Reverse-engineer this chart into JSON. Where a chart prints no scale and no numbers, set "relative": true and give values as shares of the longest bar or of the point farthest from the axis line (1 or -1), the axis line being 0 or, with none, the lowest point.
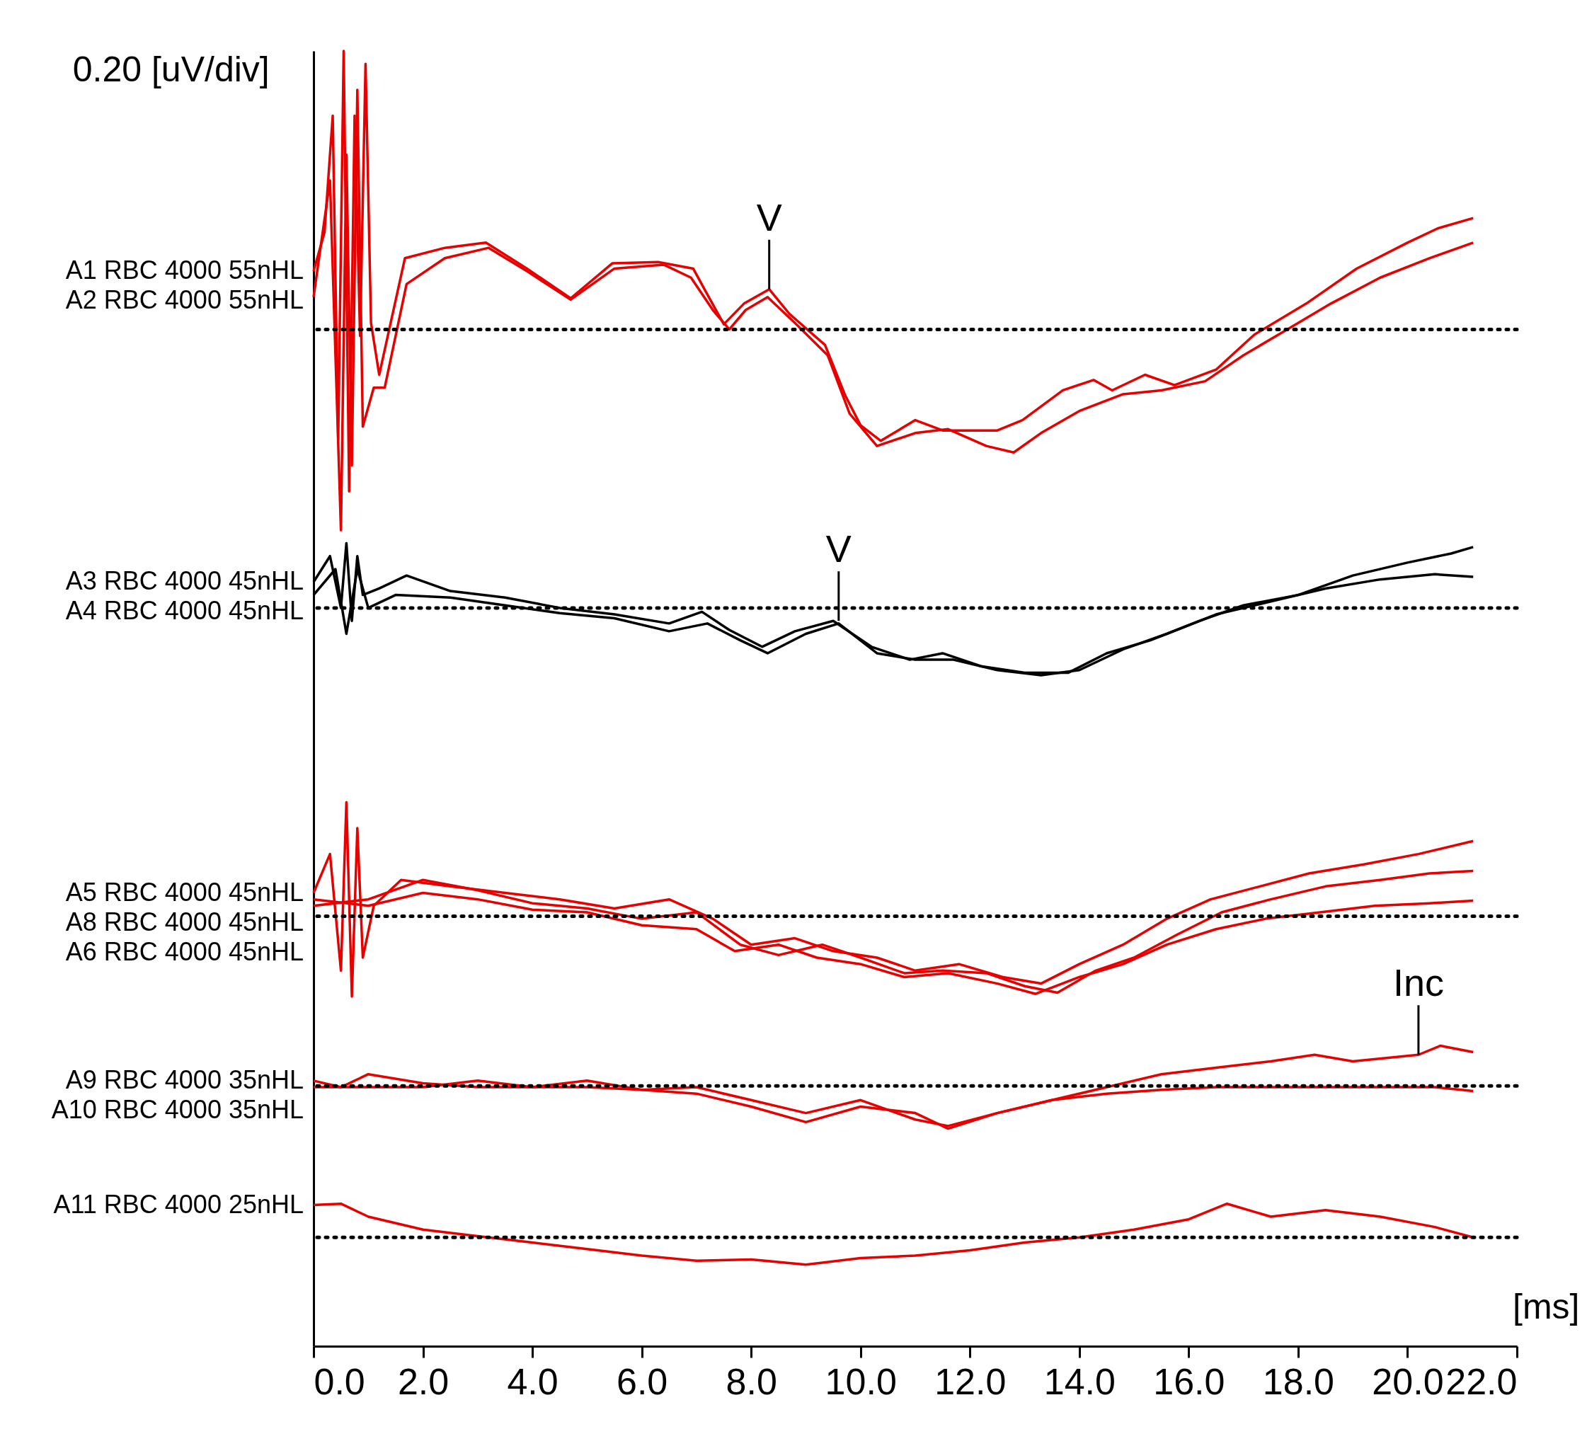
{
  "chart_data": {
    "type": "line",
    "relative": true,
    "title": "0.20 [uV/div]",
    "xlabel": "[ms]",
    "xlim": [
      0,
      22
    ],
    "xticks": [
      {
        "value": 0,
        "label": "0.0"
      },
      {
        "value": 2,
        "label": "2.0"
      },
      {
        "value": 4,
        "label": "4.0"
      },
      {
        "value": 6,
        "label": "6.0"
      },
      {
        "value": 8,
        "label": "8.0"
      },
      {
        "value": 10,
        "label": "10.0"
      },
      {
        "value": 12,
        "label": "12.0"
      },
      {
        "value": 14,
        "label": "14.0"
      },
      {
        "value": 16,
        "label": "16.0"
      },
      {
        "value": 18,
        "label": "18.0"
      },
      {
        "value": 20,
        "label": "20.0"
      },
      {
        "value": 22,
        "label": "22.0"
      }
    ],
    "grid": false,
    "marker": "none",
    "line_style": "solid",
    "series": [
      {
        "name": "A1 RBC 4000 55nHL",
        "color": "#e60000",
        "x": [
          0,
          0.2,
          0.35,
          0.45,
          0.55,
          0.65,
          0.75,
          0.85,
          0.95,
          1.05,
          1.2,
          1.67,
          2.4,
          3.15,
          3.9,
          4.7,
          5.46,
          6.3,
          6.94,
          7.2,
          7.5,
          7.87,
          8.33,
          8.7,
          9.35,
          9.72,
          10.0,
          10.37,
          11.0,
          11.5,
          12.5,
          12.96,
          13.7,
          14.26,
          14.6,
          15.2,
          15.74,
          16.5,
          17.2,
          18.15,
          19.07,
          20.0,
          20.55,
          21.2
        ],
        "values": [
          0.83,
          0.86,
          0.95,
          0.7,
          1.0,
          0.66,
          0.95,
          0.78,
          0.99,
          0.79,
          0.75,
          0.84,
          0.848,
          0.852,
          0.832,
          0.809,
          0.836,
          0.837,
          0.832,
          0.812,
          0.789,
          0.805,
          0.816,
          0.797,
          0.773,
          0.734,
          0.711,
          0.699,
          0.715,
          0.707,
          0.707,
          0.715,
          0.738,
          0.746,
          0.738,
          0.75,
          0.742,
          0.754,
          0.781,
          0.805,
          0.832,
          0.852,
          0.863,
          0.871
        ]
      },
      {
        "name": "A2 RBC 4000 55nHL",
        "color": "#e60000",
        "x": [
          0,
          0.3,
          0.5,
          0.6,
          0.7,
          0.8,
          0.9,
          1.1,
          1.3,
          1.7,
          2.4,
          3.2,
          3.9,
          4.7,
          5.5,
          6.4,
          6.9,
          7.3,
          7.6,
          7.9,
          8.3,
          8.8,
          9.4,
          9.8,
          10.3,
          11.0,
          11.6,
          12.3,
          12.8,
          13.3,
          14.0,
          14.8,
          15.5,
          16.3,
          17.0,
          17.8,
          18.6,
          19.5,
          20.4,
          21.2
        ],
        "values": [
          0.81,
          0.9,
          0.63,
          0.92,
          0.68,
          0.97,
          0.71,
          0.74,
          0.74,
          0.82,
          0.84,
          0.848,
          0.83,
          0.808,
          0.832,
          0.835,
          0.825,
          0.8,
          0.785,
          0.8,
          0.81,
          0.79,
          0.765,
          0.72,
          0.695,
          0.705,
          0.708,
          0.695,
          0.69,
          0.705,
          0.722,
          0.735,
          0.738,
          0.745,
          0.765,
          0.785,
          0.805,
          0.825,
          0.84,
          0.852
        ]
      },
      {
        "name": "A3 RBC 4000 45nHL",
        "color": "#000000",
        "x": [
          0,
          0.3,
          0.5,
          0.6,
          0.7,
          0.8,
          0.9,
          1.2,
          1.7,
          2.5,
          3.5,
          4.5,
          5.5,
          6.5,
          7.1,
          7.6,
          8.2,
          8.8,
          9.5,
          10.2,
          10.9,
          11.5,
          12.2,
          13.0,
          13.8,
          14.5,
          15.3,
          16.2,
          17.0,
          18.0,
          19.0,
          20.0,
          20.8,
          21.2
        ],
        "values": [
          0.59,
          0.61,
          0.57,
          0.62,
          0.56,
          0.61,
          0.58,
          0.585,
          0.595,
          0.583,
          0.578,
          0.57,
          0.565,
          0.558,
          0.567,
          0.553,
          0.54,
          0.552,
          0.56,
          0.54,
          0.53,
          0.535,
          0.525,
          0.52,
          0.52,
          0.535,
          0.545,
          0.56,
          0.572,
          0.58,
          0.595,
          0.605,
          0.612,
          0.617
        ]
      },
      {
        "name": "A4 RBC 4000 45nHL",
        "color": "#000000",
        "x": [
          0,
          0.4,
          0.6,
          0.8,
          1.0,
          1.5,
          2.5,
          3.5,
          4.5,
          5.5,
          6.5,
          7.2,
          7.8,
          8.3,
          9.0,
          9.6,
          10.3,
          11.0,
          11.7,
          12.5,
          13.3,
          14.0,
          14.8,
          15.6,
          16.5,
          17.5,
          18.5,
          19.5,
          20.5,
          21.2
        ],
        "values": [
          0.58,
          0.6,
          0.55,
          0.6,
          0.57,
          0.58,
          0.578,
          0.572,
          0.566,
          0.562,
          0.552,
          0.558,
          0.545,
          0.535,
          0.55,
          0.558,
          0.535,
          0.53,
          0.53,
          0.522,
          0.518,
          0.522,
          0.538,
          0.55,
          0.565,
          0.575,
          0.585,
          0.592,
          0.596,
          0.594
        ]
      },
      {
        "name": "A5 RBC 4000 45nHL",
        "color": "#e60000",
        "x": [
          0,
          0.3,
          0.5,
          0.6,
          0.7,
          0.8,
          0.9,
          1.1,
          1.6,
          2.5,
          3.5,
          4.5,
          5.5,
          6.5,
          7.3,
          8.0,
          8.8,
          9.5,
          10.3,
          11.0,
          11.8,
          12.6,
          13.3,
          14.0,
          14.8,
          15.6,
          16.4,
          17.3,
          18.2,
          19.2,
          20.2,
          21.2
        ],
        "values": [
          0.35,
          0.38,
          0.29,
          0.42,
          0.27,
          0.4,
          0.3,
          0.34,
          0.36,
          0.355,
          0.35,
          0.345,
          0.338,
          0.345,
          0.33,
          0.31,
          0.315,
          0.305,
          0.3,
          0.29,
          0.295,
          0.285,
          0.28,
          0.295,
          0.31,
          0.33,
          0.345,
          0.355,
          0.365,
          0.372,
          0.38,
          0.39
        ]
      },
      {
        "name": "A6 RBC 4000 45nHL",
        "color": "#e60000",
        "x": [
          0,
          1.0,
          2.0,
          3.0,
          4.0,
          5.0,
          6.0,
          7.0,
          7.8,
          8.5,
          9.3,
          10.0,
          10.8,
          11.5,
          12.3,
          13.0,
          13.6,
          14.3,
          15.0,
          15.8,
          16.6,
          17.5,
          18.5,
          19.5,
          20.4,
          21.2
        ],
        "values": [
          0.34,
          0.345,
          0.36,
          0.352,
          0.342,
          0.338,
          0.33,
          0.335,
          0.31,
          0.302,
          0.31,
          0.3,
          0.288,
          0.29,
          0.288,
          0.278,
          0.273,
          0.29,
          0.3,
          0.318,
          0.335,
          0.345,
          0.355,
          0.36,
          0.365,
          0.367
        ]
      },
      {
        "name": "A8 RBC 4000 45nHL",
        "color": "#e60000",
        "x": [
          0,
          1.0,
          2.0,
          3.0,
          4.0,
          5.0,
          6.0,
          7.0,
          7.7,
          8.5,
          9.2,
          10.0,
          10.8,
          11.6,
          12.5,
          13.2,
          14.0,
          14.8,
          15.6,
          16.5,
          17.4,
          18.4,
          19.4,
          20.4,
          21.2
        ],
        "values": [
          0.345,
          0.34,
          0.35,
          0.345,
          0.337,
          0.335,
          0.325,
          0.322,
          0.305,
          0.31,
          0.3,
          0.295,
          0.285,
          0.288,
          0.28,
          0.272,
          0.285,
          0.295,
          0.31,
          0.322,
          0.33,
          0.335,
          0.34,
          0.342,
          0.344
        ]
      },
      {
        "name": "A9 RBC 4000 35nHL",
        "color": "#e60000",
        "x": [
          0,
          0.5,
          1.0,
          2.0,
          3.0,
          4.0,
          5.0,
          6.0,
          7.0,
          8.0,
          9.0,
          10.0,
          11.0,
          11.6,
          12.5,
          13.5,
          14.5,
          15.5,
          16.5,
          17.5,
          18.3,
          19.0,
          20.2,
          20.6,
          21.2
        ],
        "values": [
          0.205,
          0.2,
          0.21,
          0.203,
          0.2,
          0.2,
          0.205,
          0.198,
          0.2,
          0.19,
          0.18,
          0.19,
          0.175,
          0.17,
          0.18,
          0.19,
          0.2,
          0.21,
          0.215,
          0.22,
          0.225,
          0.22,
          0.225,
          0.232,
          0.227
        ]
      },
      {
        "name": "A10 RBC 4000 35nHL",
        "color": "#e60000",
        "x": [
          0,
          1.0,
          2.0,
          3.0,
          4.0,
          5.0,
          6.0,
          7.0,
          8.0,
          9.0,
          10.0,
          11.0,
          11.6,
          12.5,
          13.5,
          14.5,
          15.5,
          16.5,
          17.5,
          18.5,
          19.5,
          20.5,
          21.2
        ],
        "values": [
          0.2,
          0.2,
          0.2,
          0.205,
          0.2,
          0.2,
          0.198,
          0.195,
          0.185,
          0.173,
          0.185,
          0.18,
          0.168,
          0.18,
          0.19,
          0.195,
          0.198,
          0.2,
          0.2,
          0.2,
          0.2,
          0.2,
          0.197
        ]
      },
      {
        "name": "A11 RBC 4000 25nHL",
        "color": "#e60000",
        "x": [
          0,
          0.5,
          1.0,
          2.0,
          3.0,
          4.0,
          5.0,
          6.0,
          7.0,
          8.0,
          9.0,
          10.0,
          11.0,
          12.0,
          13.0,
          14.0,
          15.0,
          16.0,
          16.7,
          17.5,
          18.5,
          19.5,
          20.5,
          21.2
        ],
        "values": [
          0.109,
          0.11,
          0.1,
          0.09,
          0.085,
          0.08,
          0.075,
          0.07,
          0.066,
          0.067,
          0.063,
          0.068,
          0.07,
          0.074,
          0.08,
          0.084,
          0.09,
          0.098,
          0.11,
          0.1,
          0.105,
          0.1,
          0.092,
          0.084
        ]
      }
    ],
    "ref_lines": [
      {
        "axis": "y",
        "value": 0.785,
        "color": "#000000",
        "line_style": "dotted"
      },
      {
        "axis": "y",
        "value": 0.57,
        "color": "#000000",
        "line_style": "dotted"
      },
      {
        "axis": "y",
        "value": 0.332,
        "color": "#000000",
        "line_style": "dotted"
      },
      {
        "axis": "y",
        "value": 0.201,
        "color": "#000000",
        "line_style": "dotted"
      },
      {
        "axis": "y",
        "value": 0.084,
        "color": "#000000",
        "line_style": "dotted"
      }
    ],
    "annotations": [
      {
        "text": "V",
        "x": 8.33,
        "y": 0.816
      },
      {
        "text": "V",
        "x": 9.6,
        "y": 0.56
      },
      {
        "text": "Inc",
        "x": 20.2,
        "y": 0.225
      }
    ]
  }
}
